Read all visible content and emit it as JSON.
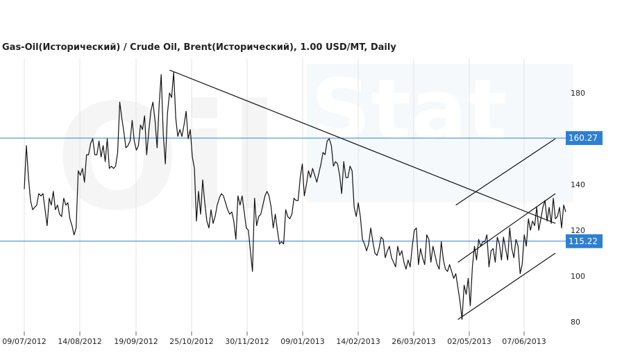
{
  "chart_data": {
    "type": "line",
    "title": "Gas-Oil(Исторический) / Crude Oil, Brent(Исторический), 1.00 USD/MT, Daily",
    "x_ticks": [
      "09/07/2012",
      "14/08/2012",
      "19/09/2012",
      "25/10/2012",
      "30/11/2012",
      "09/01/2013",
      "14/02/2013",
      "26/03/2013",
      "02/05/2013",
      "07/06/2013"
    ],
    "y_ticks": [
      80,
      100,
      120,
      140,
      180
    ],
    "ylim": [
      76,
      197
    ],
    "grid": true,
    "series": [
      {
        "values": [
          138,
          157,
          143,
          133,
          129,
          130,
          131,
          136,
          135,
          136,
          129,
          122,
          134,
          131,
          137,
          129,
          131,
          127,
          126,
          134,
          131,
          132,
          125,
          122,
          118,
          121,
          146,
          144,
          147,
          141,
          153,
          153,
          158,
          160,
          153,
          153,
          159,
          152,
          157,
          150,
          160,
          147,
          148,
          147,
          148,
          154,
          176,
          169,
          163,
          156,
          157,
          159,
          168,
          159,
          155,
          157,
          166,
          164,
          170,
          153,
          163,
          172,
          176,
          168,
          156,
          175,
          188,
          162,
          149,
          171,
          180,
          178,
          189,
          169,
          161,
          164,
          161,
          166,
          172,
          160,
          164,
          152,
          147,
          124,
          137,
          127,
          142,
          132,
          124,
          121,
          129,
          123,
          126,
          131,
          134,
          136,
          135,
          132,
          129,
          127,
          128,
          124,
          116,
          135,
          131,
          135,
          128,
          121,
          120,
          111,
          102,
          134,
          122,
          126,
          127,
          131,
          135,
          137,
          135,
          130,
          121,
          127,
          120,
          114,
          115,
          114,
          129,
          126,
          125,
          127,
          134,
          133,
          133,
          143,
          149,
          135,
          140,
          146,
          143,
          147,
          144,
          141,
          145,
          149,
          154,
          153,
          159,
          160,
          157,
          148,
          150,
          149,
          144,
          136,
          150,
          143,
          143,
          148,
          146,
          130,
          126,
          132,
          126,
          116,
          114,
          111,
          114,
          121,
          115,
          110,
          109,
          112,
          117,
          116,
          108,
          111,
          113,
          108,
          106,
          104,
          113,
          109,
          111,
          106,
          103,
          107,
          104,
          113,
          120,
          121,
          105,
          112,
          108,
          105,
          118,
          116,
          106,
          113,
          109,
          105,
          103,
          115,
          107,
          103,
          102,
          105,
          102,
          99,
          101,
          95,
          89,
          81,
          96,
          92,
          99,
          87,
          104,
          113,
          107,
          116,
          113,
          115,
          115,
          118,
          104,
          111,
          112,
          106,
          117,
          114,
          107,
          117,
          112,
          107,
          121,
          112,
          108,
          116,
          113,
          101,
          105,
          118,
          113,
          125,
          120,
          124,
          122,
          130,
          120,
          125,
          130,
          133,
          124,
          130,
          123,
          134,
          125,
          126,
          130,
          121,
          131,
          128
        ],
        "line_color": "#111111"
      }
    ],
    "hlines": [
      {
        "y": 160.27,
        "label": "160.27",
        "color": "#2f7fd0"
      },
      {
        "y": 115.22,
        "label": "115.22",
        "color": "#2f7fd0"
      }
    ],
    "trendlines": [
      {
        "from": [
          70,
          190
        ],
        "to": [
          256,
          123
        ]
      },
      {
        "from": [
          209,
          81
        ],
        "to": [
          256,
          110
        ]
      },
      {
        "from": [
          209,
          106
        ],
        "to": [
          256,
          136
        ]
      },
      {
        "from": [
          208,
          131
        ],
        "to": [
          256,
          160
        ]
      }
    ],
    "watermark": {
      "oil": "Oil",
      "stat": "Stat"
    }
  }
}
